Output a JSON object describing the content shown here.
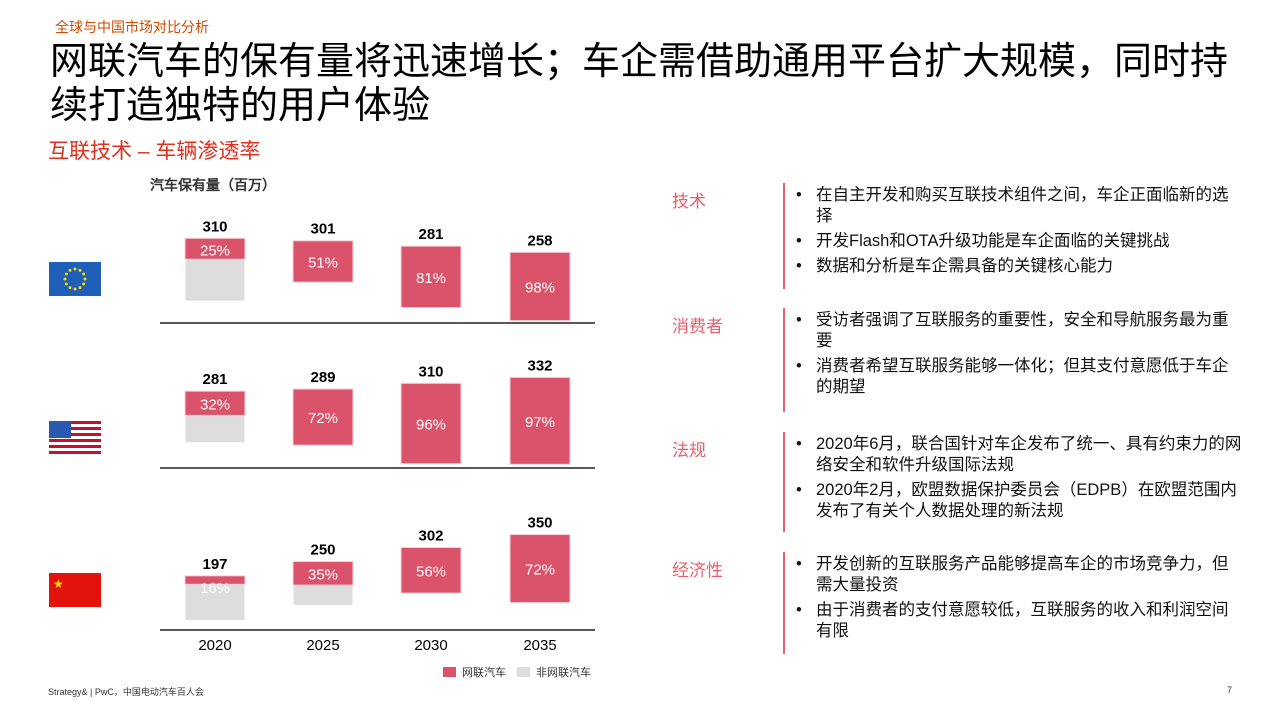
{
  "breadcrumb": "全球与中国市场对比分析",
  "title": "网联汽车的保有量将迅速增长；车企需借助通用平台扩大规模，同时持续打造独特的用户体验",
  "subtitle": "互联技术 – 车辆渗透率",
  "chart_data": {
    "type": "bar",
    "stacked": true,
    "title": "汽车保有量（百万）",
    "categories": [
      "2020",
      "2025",
      "2030",
      "2035"
    ],
    "legend": [
      "网联汽车",
      "非网联汽车"
    ],
    "colors": {
      "connected": "#db536a",
      "non_connected": "#dddddd"
    },
    "panels": [
      {
        "region": "EU",
        "flag_icon": "eu-flag-icon",
        "totals": [
          310,
          301,
          281,
          258
        ],
        "connected_pct": [
          "25%",
          "51%",
          "81%",
          "98%"
        ],
        "connected_share": [
          25,
          51,
          81,
          98
        ]
      },
      {
        "region": "US",
        "flag_icon": "us-flag-icon",
        "totals": [
          281,
          289,
          310,
          332
        ],
        "connected_pct": [
          "32%",
          "72%",
          "96%",
          "97%"
        ],
        "connected_share": [
          32,
          72,
          96,
          97
        ]
      },
      {
        "region": "China",
        "flag_icon": "china-flag-icon",
        "totals": [
          197,
          250,
          302,
          350
        ],
        "connected_pct": [
          "16%",
          "35%",
          "56%",
          "72%"
        ],
        "connected_share": [
          16,
          35,
          56,
          72
        ]
      }
    ]
  },
  "sections": [
    {
      "label": "技术",
      "items": [
        "在自主开发和购买互联技术组件之间，车企正面临新的选择",
        "开发Flash和OTA升级功能是车企面临的关键挑战",
        "数据和分析是车企需具备的关键核心能力"
      ]
    },
    {
      "label": "消费者",
      "items": [
        "受访者强调了互联服务的重要性，安全和导航服务最为重要",
        "消费者希望互联服务能够一体化；但其支付意愿低于车企的期望"
      ]
    },
    {
      "label": "法规",
      "items": [
        "2020年6月，联合国针对车企发布了统一、具有约束力的网络安全和软件升级国际法规",
        "2020年2月，欧盟数据保护委员会（EDPB）在欧盟范围内发布了有关个人数据处理的新法规"
      ]
    },
    {
      "label": "经济性",
      "items": [
        "开发创新的互联服务产品能够提高车企的市场竞争力，但需大量投资",
        "由于消费者的支付意愿较低，互联服务的收入和利润空间有限"
      ]
    }
  ],
  "footer": "Strategy& | PwC，中国电动汽车百人会",
  "page_number": "7"
}
